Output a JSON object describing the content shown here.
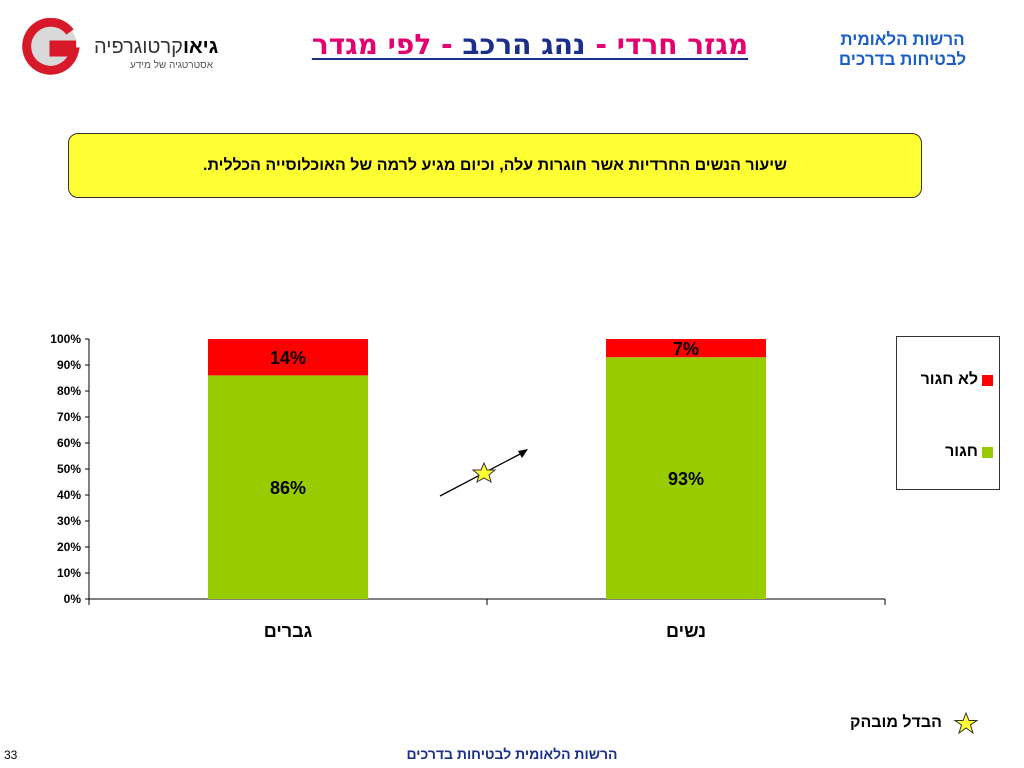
{
  "header": {
    "logo_name_bold": "גיאו",
    "logo_name": "קרטוגרפיה",
    "logo_tagline": "אסטרטגיה של מידע",
    "title_part1": "מגזר חרדי - ",
    "title_part2": "נהג הרכב",
    "title_part3": " - לפי מגדר",
    "org_line1": "הרשות הלאומית",
    "org_line2": "לבטיחות בדרכים"
  },
  "callout": {
    "text": "שיעור הנשים החרדיות אשר חוגרות עלה, וכיום מגיע לרמה של האוכלוסייה הכללית."
  },
  "chart_data": {
    "type": "bar",
    "stacked": true,
    "categories": [
      "גברים",
      "נשים"
    ],
    "series": [
      {
        "name": "חגור",
        "values": [
          86,
          93
        ],
        "color": "#99cc00"
      },
      {
        "name": "לא חגור",
        "values": [
          14,
          7
        ],
        "color": "#ff0000"
      }
    ],
    "data_labels": [
      [
        "86%",
        "93%"
      ],
      [
        "14%",
        "7%"
      ]
    ],
    "yticks": [
      "0%",
      "10%",
      "20%",
      "30%",
      "40%",
      "50%",
      "60%",
      "70%",
      "80%",
      "90%",
      "100%"
    ],
    "ylim": [
      0,
      100
    ],
    "legend_position": "right",
    "grid": false
  },
  "legend": {
    "items": [
      {
        "label": "לא חגור",
        "color": "#ff0000"
      },
      {
        "label": "חגור",
        "color": "#99cc00"
      }
    ]
  },
  "footnote": {
    "text": "הבדל מובהק",
    "icon": "star-icon"
  },
  "footer": {
    "text": "הרשות הלאומית לבטיחות בדרכים",
    "page_number": "33"
  }
}
